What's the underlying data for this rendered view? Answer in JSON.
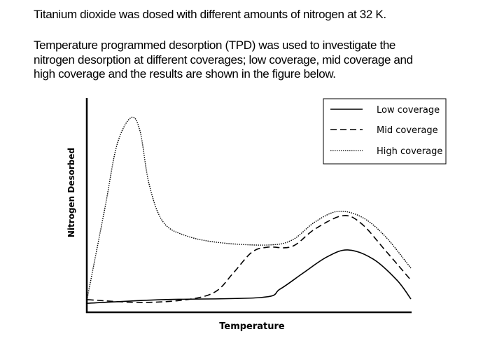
{
  "document": {
    "intro": "Titanium dioxide was dosed with different amounts of nitrogen at 32 K.",
    "paragraph_lines": [
      "Temperature programmed desorption (TPD) was used to investigate the",
      "nitrogen desorption at different coverages; low coverage, mid coverage and",
      "high coverage and the results are shown in the figure below."
    ]
  },
  "chart_data": {
    "type": "line",
    "title": "",
    "xlabel": "Temperature",
    "ylabel": "Nitrogen Desorbed",
    "xlim": [
      0,
      100
    ],
    "ylim": [
      0,
      100
    ],
    "ticks": "none",
    "grid": false,
    "legend_position": "top-right",
    "series": [
      {
        "name": "Low coverage",
        "style": "solid",
        "color": "#000000",
        "x": [
          0.4,
          23.7,
          53.9,
          59.7,
          66.8,
          74.1,
          80.6,
          88.4,
          95.7,
          100
        ],
        "y": [
          4.2,
          5.9,
          6.9,
          10.8,
          18.3,
          25.8,
          29.1,
          24.8,
          15.0,
          6.2
        ]
      },
      {
        "name": "Mid coverage",
        "style": "dashed",
        "color": "#000000",
        "x": [
          0.4,
          16.6,
          31.0,
          39.7,
          45.3,
          51.1,
          56.0,
          63.4,
          70.5,
          79.1,
          84.9,
          92.0,
          100
        ],
        "y": [
          5.9,
          4.6,
          5.9,
          9.5,
          18.3,
          28.1,
          30.4,
          30.7,
          38.9,
          45.1,
          41.2,
          29.1,
          15.0
        ]
      },
      {
        "name": "High coverage",
        "style": "dotted",
        "color": "#000000",
        "x": [
          0.4,
          5.8,
          9.5,
          13.8,
          16.6,
          19.4,
          23.7,
          31.0,
          41.8,
          56.0,
          63.4,
          70.5,
          77.6,
          84.9,
          92.0,
          100
        ],
        "y": [
          6.9,
          48.7,
          78.1,
          90.8,
          84.6,
          59.8,
          42.2,
          35.6,
          32.4,
          31.4,
          33.7,
          42.2,
          47.1,
          44.4,
          35.6,
          20.6
        ]
      }
    ]
  }
}
